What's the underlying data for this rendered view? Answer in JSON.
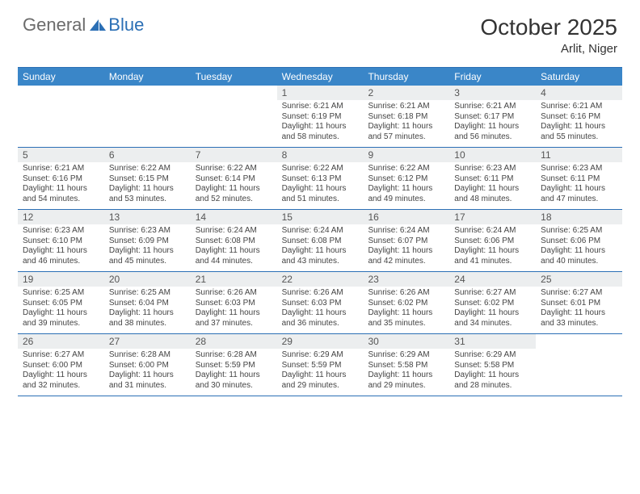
{
  "colors": {
    "header_bar": "#3a86c8",
    "header_text": "#ffffff",
    "rule": "#2b6fb5",
    "daynum_bg": "#eceeef",
    "daynum_text": "#555555",
    "body_text": "#444444",
    "logo_gray": "#6b6b6b",
    "logo_blue": "#2b6fb5"
  },
  "logo": {
    "general": "General",
    "blue": "Blue"
  },
  "title": "October 2025",
  "location": "Arlit, Niger",
  "weekdays": [
    "Sunday",
    "Monday",
    "Tuesday",
    "Wednesday",
    "Thursday",
    "Friday",
    "Saturday"
  ],
  "weeks": [
    [
      {
        "n": "",
        "sr": "",
        "ss": "",
        "dl": ""
      },
      {
        "n": "",
        "sr": "",
        "ss": "",
        "dl": ""
      },
      {
        "n": "",
        "sr": "",
        "ss": "",
        "dl": ""
      },
      {
        "n": "1",
        "sr": "Sunrise: 6:21 AM",
        "ss": "Sunset: 6:19 PM",
        "dl": "Daylight: 11 hours and 58 minutes."
      },
      {
        "n": "2",
        "sr": "Sunrise: 6:21 AM",
        "ss": "Sunset: 6:18 PM",
        "dl": "Daylight: 11 hours and 57 minutes."
      },
      {
        "n": "3",
        "sr": "Sunrise: 6:21 AM",
        "ss": "Sunset: 6:17 PM",
        "dl": "Daylight: 11 hours and 56 minutes."
      },
      {
        "n": "4",
        "sr": "Sunrise: 6:21 AM",
        "ss": "Sunset: 6:16 PM",
        "dl": "Daylight: 11 hours and 55 minutes."
      }
    ],
    [
      {
        "n": "5",
        "sr": "Sunrise: 6:21 AM",
        "ss": "Sunset: 6:16 PM",
        "dl": "Daylight: 11 hours and 54 minutes."
      },
      {
        "n": "6",
        "sr": "Sunrise: 6:22 AM",
        "ss": "Sunset: 6:15 PM",
        "dl": "Daylight: 11 hours and 53 minutes."
      },
      {
        "n": "7",
        "sr": "Sunrise: 6:22 AM",
        "ss": "Sunset: 6:14 PM",
        "dl": "Daylight: 11 hours and 52 minutes."
      },
      {
        "n": "8",
        "sr": "Sunrise: 6:22 AM",
        "ss": "Sunset: 6:13 PM",
        "dl": "Daylight: 11 hours and 51 minutes."
      },
      {
        "n": "9",
        "sr": "Sunrise: 6:22 AM",
        "ss": "Sunset: 6:12 PM",
        "dl": "Daylight: 11 hours and 49 minutes."
      },
      {
        "n": "10",
        "sr": "Sunrise: 6:23 AM",
        "ss": "Sunset: 6:11 PM",
        "dl": "Daylight: 11 hours and 48 minutes."
      },
      {
        "n": "11",
        "sr": "Sunrise: 6:23 AM",
        "ss": "Sunset: 6:11 PM",
        "dl": "Daylight: 11 hours and 47 minutes."
      }
    ],
    [
      {
        "n": "12",
        "sr": "Sunrise: 6:23 AM",
        "ss": "Sunset: 6:10 PM",
        "dl": "Daylight: 11 hours and 46 minutes."
      },
      {
        "n": "13",
        "sr": "Sunrise: 6:23 AM",
        "ss": "Sunset: 6:09 PM",
        "dl": "Daylight: 11 hours and 45 minutes."
      },
      {
        "n": "14",
        "sr": "Sunrise: 6:24 AM",
        "ss": "Sunset: 6:08 PM",
        "dl": "Daylight: 11 hours and 44 minutes."
      },
      {
        "n": "15",
        "sr": "Sunrise: 6:24 AM",
        "ss": "Sunset: 6:08 PM",
        "dl": "Daylight: 11 hours and 43 minutes."
      },
      {
        "n": "16",
        "sr": "Sunrise: 6:24 AM",
        "ss": "Sunset: 6:07 PM",
        "dl": "Daylight: 11 hours and 42 minutes."
      },
      {
        "n": "17",
        "sr": "Sunrise: 6:24 AM",
        "ss": "Sunset: 6:06 PM",
        "dl": "Daylight: 11 hours and 41 minutes."
      },
      {
        "n": "18",
        "sr": "Sunrise: 6:25 AM",
        "ss": "Sunset: 6:06 PM",
        "dl": "Daylight: 11 hours and 40 minutes."
      }
    ],
    [
      {
        "n": "19",
        "sr": "Sunrise: 6:25 AM",
        "ss": "Sunset: 6:05 PM",
        "dl": "Daylight: 11 hours and 39 minutes."
      },
      {
        "n": "20",
        "sr": "Sunrise: 6:25 AM",
        "ss": "Sunset: 6:04 PM",
        "dl": "Daylight: 11 hours and 38 minutes."
      },
      {
        "n": "21",
        "sr": "Sunrise: 6:26 AM",
        "ss": "Sunset: 6:03 PM",
        "dl": "Daylight: 11 hours and 37 minutes."
      },
      {
        "n": "22",
        "sr": "Sunrise: 6:26 AM",
        "ss": "Sunset: 6:03 PM",
        "dl": "Daylight: 11 hours and 36 minutes."
      },
      {
        "n": "23",
        "sr": "Sunrise: 6:26 AM",
        "ss": "Sunset: 6:02 PM",
        "dl": "Daylight: 11 hours and 35 minutes."
      },
      {
        "n": "24",
        "sr": "Sunrise: 6:27 AM",
        "ss": "Sunset: 6:02 PM",
        "dl": "Daylight: 11 hours and 34 minutes."
      },
      {
        "n": "25",
        "sr": "Sunrise: 6:27 AM",
        "ss": "Sunset: 6:01 PM",
        "dl": "Daylight: 11 hours and 33 minutes."
      }
    ],
    [
      {
        "n": "26",
        "sr": "Sunrise: 6:27 AM",
        "ss": "Sunset: 6:00 PM",
        "dl": "Daylight: 11 hours and 32 minutes."
      },
      {
        "n": "27",
        "sr": "Sunrise: 6:28 AM",
        "ss": "Sunset: 6:00 PM",
        "dl": "Daylight: 11 hours and 31 minutes."
      },
      {
        "n": "28",
        "sr": "Sunrise: 6:28 AM",
        "ss": "Sunset: 5:59 PM",
        "dl": "Daylight: 11 hours and 30 minutes."
      },
      {
        "n": "29",
        "sr": "Sunrise: 6:29 AM",
        "ss": "Sunset: 5:59 PM",
        "dl": "Daylight: 11 hours and 29 minutes."
      },
      {
        "n": "30",
        "sr": "Sunrise: 6:29 AM",
        "ss": "Sunset: 5:58 PM",
        "dl": "Daylight: 11 hours and 29 minutes."
      },
      {
        "n": "31",
        "sr": "Sunrise: 6:29 AM",
        "ss": "Sunset: 5:58 PM",
        "dl": "Daylight: 11 hours and 28 minutes."
      },
      {
        "n": "",
        "sr": "",
        "ss": "",
        "dl": ""
      }
    ]
  ]
}
